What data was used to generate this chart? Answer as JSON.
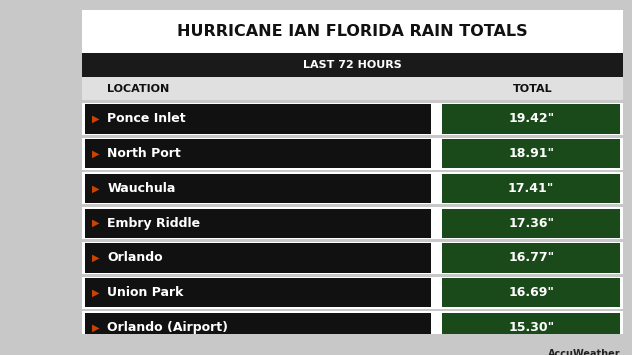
{
  "title": "HURRICANE IAN FLORIDA RAIN TOTALS",
  "subtitle": "LAST 72 HOURS",
  "col_location": "LOCATION",
  "col_total": "TOTAL",
  "locations": [
    "Ponce Inlet",
    "North Port",
    "Wauchula",
    "Embry Riddle",
    "Orlando",
    "Union Park",
    "Orlando (Airport)"
  ],
  "totals": [
    "19.42\"",
    "18.91\"",
    "17.41\"",
    "17.36\"",
    "16.77\"",
    "16.69\"",
    "15.30\""
  ],
  "bg_color": "#c8c8c8",
  "title_bg": "#ffffff",
  "subtitle_bg": "#1a1a1a",
  "row_bg": "#111111",
  "value_bg": "#1a4a1a",
  "title_color": "#111111",
  "subtitle_color": "#ffffff",
  "location_color": "#ffffff",
  "value_color": "#ffffff",
  "header_color": "#111111",
  "arrow_color": "#cc4400",
  "accu_orange": "#ff6600",
  "logo_text": "AccuWeather"
}
